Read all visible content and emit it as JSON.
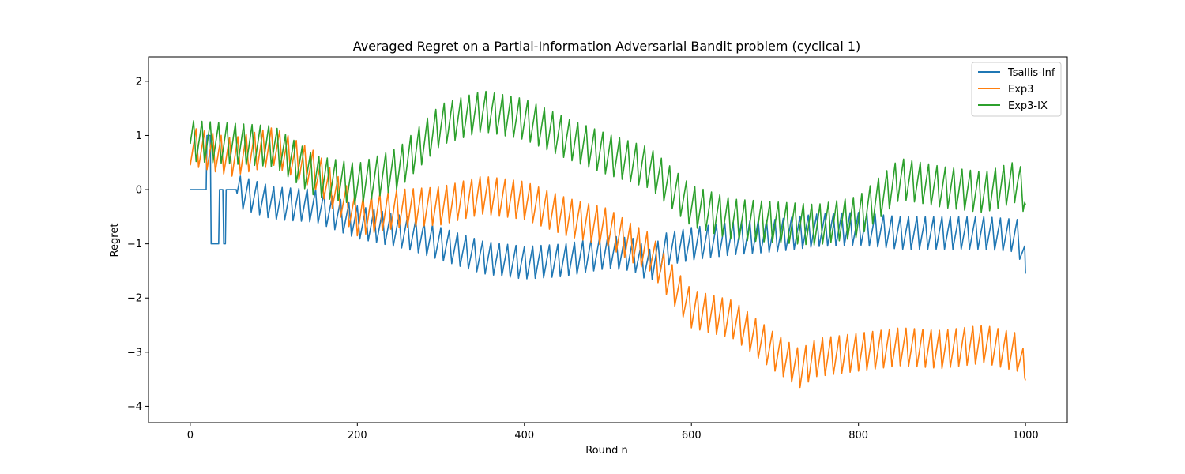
{
  "chart_data": {
    "type": "line",
    "title": "Averaged Regret on a Partial-Information Adversarial Bandit problem (cyclical 1)",
    "xlabel": "Round n",
    "ylabel": "Regret",
    "xlim": [
      -50,
      1050
    ],
    "ylim": [
      -4.3,
      2.45
    ],
    "xticks": [
      0,
      200,
      400,
      600,
      800,
      1000
    ],
    "yticks": [
      -4,
      -3,
      -2,
      -1,
      0,
      1,
      2
    ],
    "grid": false,
    "legend_position": "upper-right",
    "series": [
      {
        "name": "Tsallis-Inf",
        "color": "#1f77b4",
        "baseline": [
          [
            0,
            0.0
          ],
          [
            50,
            0.0
          ],
          [
            100,
            -0.25
          ],
          [
            150,
            -0.3
          ],
          [
            200,
            -0.6
          ],
          [
            260,
            -0.8
          ],
          [
            300,
            -1.0
          ],
          [
            350,
            -1.25
          ],
          [
            400,
            -1.35
          ],
          [
            450,
            -1.3
          ],
          [
            500,
            -1.15
          ],
          [
            530,
            -1.2
          ],
          [
            550,
            -1.4
          ],
          [
            570,
            -1.1
          ],
          [
            600,
            -1.0
          ],
          [
            650,
            -0.9
          ],
          [
            700,
            -0.85
          ],
          [
            750,
            -0.75
          ],
          [
            800,
            -0.72
          ],
          [
            850,
            -0.8
          ],
          [
            900,
            -0.8
          ],
          [
            950,
            -0.8
          ],
          [
            990,
            -0.85
          ],
          [
            1000,
            -1.3
          ]
        ],
        "amplitude": 0.6,
        "period": 10,
        "end_value": -1.55
      },
      {
        "name": "Exp3",
        "color": "#ff7f0e",
        "baseline": [
          [
            0,
            0.8
          ],
          [
            50,
            0.6
          ],
          [
            100,
            0.8
          ],
          [
            150,
            0.35
          ],
          [
            200,
            -0.5
          ],
          [
            250,
            -0.35
          ],
          [
            300,
            -0.3
          ],
          [
            350,
            -0.1
          ],
          [
            400,
            -0.2
          ],
          [
            450,
            -0.5
          ],
          [
            500,
            -0.7
          ],
          [
            530,
            -1.0
          ],
          [
            550,
            -1.15
          ],
          [
            580,
            -1.8
          ],
          [
            600,
            -2.2
          ],
          [
            650,
            -2.4
          ],
          [
            700,
            -3.0
          ],
          [
            730,
            -3.3
          ],
          [
            750,
            -3.1
          ],
          [
            800,
            -3.0
          ],
          [
            850,
            -2.9
          ],
          [
            900,
            -2.95
          ],
          [
            950,
            -2.85
          ],
          [
            990,
            -3.0
          ],
          [
            1000,
            -3.4
          ]
        ],
        "amplitude": 0.7,
        "period": 10,
        "end_value": -3.52
      },
      {
        "name": "Exp3-IX",
        "color": "#2ca02c",
        "baseline": [
          [
            0,
            0.9
          ],
          [
            50,
            0.85
          ],
          [
            100,
            0.8
          ],
          [
            150,
            0.25
          ],
          [
            200,
            0.1
          ],
          [
            250,
            0.4
          ],
          [
            300,
            1.2
          ],
          [
            350,
            1.45
          ],
          [
            400,
            1.3
          ],
          [
            450,
            0.95
          ],
          [
            500,
            0.65
          ],
          [
            550,
            0.4
          ],
          [
            600,
            -0.3
          ],
          [
            650,
            -0.55
          ],
          [
            700,
            -0.6
          ],
          [
            750,
            -0.65
          ],
          [
            800,
            -0.5
          ],
          [
            850,
            0.2
          ],
          [
            900,
            0.05
          ],
          [
            950,
            -0.05
          ],
          [
            990,
            0.15
          ],
          [
            1000,
            -0.1
          ]
        ],
        "amplitude": 0.75,
        "period": 10,
        "end_value": -0.28
      }
    ]
  }
}
